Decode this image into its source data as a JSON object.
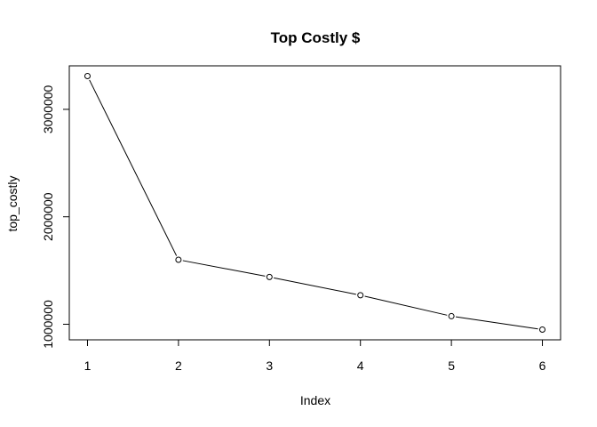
{
  "chart_data": {
    "type": "line",
    "title": "Top Costly $",
    "xlabel": "Index",
    "ylabel": "top_costly",
    "x": [
      1,
      2,
      3,
      4,
      5,
      6
    ],
    "series": [
      {
        "values": [
          3310000,
          1600000,
          1440000,
          1270000,
          1075000,
          950000
        ]
      }
    ],
    "xticks": [
      "1",
      "2",
      "3",
      "4",
      "5",
      "6"
    ],
    "yticks": [
      {
        "value": 1000000,
        "label": "1000000"
      },
      {
        "value": 2000000,
        "label": "2000000"
      },
      {
        "value": 3000000,
        "label": "3000000"
      }
    ],
    "xlim": [
      0.8,
      6.2
    ],
    "ylim": [
      855000,
      3405000
    ],
    "grid": false,
    "marker": "open-circle",
    "line_color": "#000000"
  }
}
